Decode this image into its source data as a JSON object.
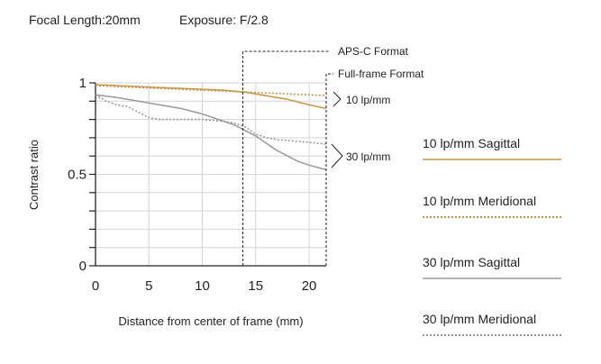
{
  "header": {
    "focal_length": "Focal Length:20mm",
    "exposure": "Exposure: F/2.8"
  },
  "chart_data": {
    "type": "line",
    "title": "",
    "xlabel": "Distance from center of frame (mm)",
    "ylabel": "Contrast ratio",
    "xlim": [
      0,
      21.6
    ],
    "ylim": [
      0,
      1
    ],
    "x_ticks": [
      0,
      5,
      10,
      15,
      20
    ],
    "y_tick_labels": [
      {
        "value": 0,
        "label": "0"
      },
      {
        "value": 0.5,
        "label": "0.5"
      },
      {
        "value": 1,
        "label": "1"
      }
    ],
    "y_minor_step": 0.1,
    "grid": true,
    "legend_position": "right",
    "series": [
      {
        "name": "10 lp/mm Sagittal",
        "color": "#c8924a",
        "style": "solid",
        "x": [
          0,
          2,
          4,
          6,
          8,
          10,
          12,
          14,
          16,
          18,
          20,
          21.6
        ],
        "y": [
          0.99,
          0.985,
          0.98,
          0.975,
          0.97,
          0.965,
          0.96,
          0.95,
          0.93,
          0.91,
          0.88,
          0.86
        ]
      },
      {
        "name": "10 lp/mm Meridional",
        "color": "#c8924a",
        "style": "dotted",
        "x": [
          0,
          2,
          4,
          6,
          8,
          10,
          12,
          14,
          16,
          18,
          20,
          21.6
        ],
        "y": [
          0.985,
          0.98,
          0.975,
          0.97,
          0.965,
          0.96,
          0.955,
          0.95,
          0.945,
          0.94,
          0.935,
          0.93
        ]
      },
      {
        "name": "30 lp/mm Sagittal",
        "color": "#999999",
        "style": "solid",
        "x": [
          0,
          2,
          4,
          6,
          8,
          10,
          11,
          12,
          13,
          14,
          15,
          16,
          17,
          18,
          19,
          20,
          21.6
        ],
        "y": [
          0.935,
          0.92,
          0.9,
          0.88,
          0.86,
          0.83,
          0.81,
          0.79,
          0.77,
          0.74,
          0.71,
          0.67,
          0.63,
          0.6,
          0.57,
          0.55,
          0.525
        ]
      },
      {
        "name": "30 lp/mm Meridional",
        "color": "#999999",
        "style": "dotted",
        "x": [
          0,
          1,
          2,
          3,
          4,
          5,
          6,
          8,
          10,
          12,
          13,
          14,
          15,
          16,
          17,
          18,
          20,
          21.6
        ],
        "y": [
          0.935,
          0.9,
          0.88,
          0.87,
          0.84,
          0.81,
          0.8,
          0.8,
          0.8,
          0.79,
          0.78,
          0.76,
          0.72,
          0.7,
          0.69,
          0.685,
          0.675,
          0.665
        ]
      }
    ],
    "annotations": {
      "aps_c": "APS-C Format",
      "full_frame": "Full-frame Format",
      "group_10": "10 lp/mm",
      "group_30": "30 lp/mm"
    },
    "aps_c_x": 13.8,
    "full_frame_x": 21.6
  }
}
